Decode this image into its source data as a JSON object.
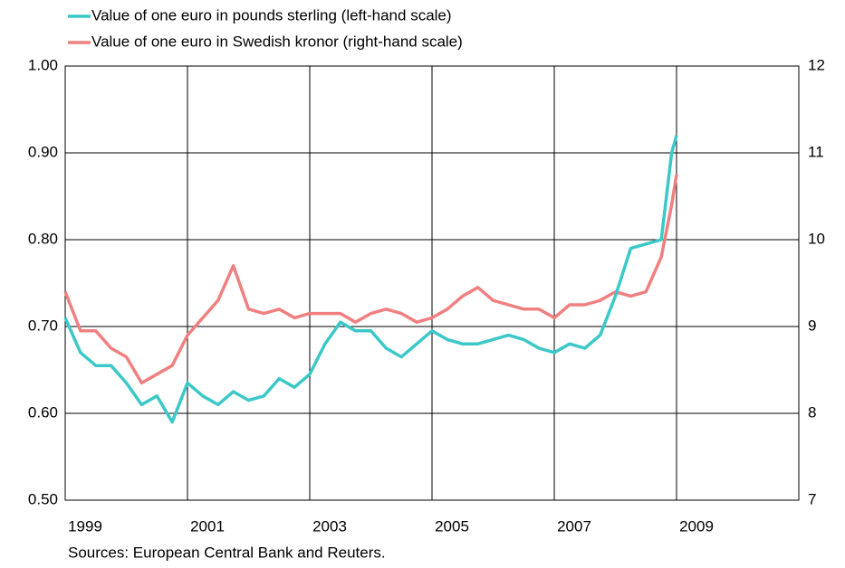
{
  "chart_data": {
    "type": "line",
    "legend": "top-left",
    "note": "Sources: European Central Bank and Reuters.",
    "grid": true,
    "x": [
      1999.0,
      1999.25,
      1999.5,
      1999.75,
      2000.0,
      2000.25,
      2000.5,
      2000.75,
      2001.0,
      2001.25,
      2001.5,
      2001.75,
      2002.0,
      2002.25,
      2002.5,
      2002.75,
      2003.0,
      2003.25,
      2003.5,
      2003.75,
      2004.0,
      2004.25,
      2004.5,
      2004.75,
      2005.0,
      2005.25,
      2005.5,
      2005.75,
      2006.0,
      2006.25,
      2006.5,
      2006.75,
      2007.0,
      2007.25,
      2007.5,
      2007.75,
      2008.0,
      2008.25,
      2008.5,
      2008.75,
      2008.92,
      2009.0
    ],
    "xlim": [
      1999,
      2011
    ],
    "xticks": [
      1999,
      2001,
      2003,
      2005,
      2007,
      2009
    ],
    "ylim": [
      0.5,
      1.0
    ],
    "yticks": [
      {
        "value": 0.5,
        "label": "0.50"
      },
      {
        "value": 0.6,
        "label": "0.60"
      },
      {
        "value": 0.7,
        "label": "0.70"
      },
      {
        "value": 0.8,
        "label": "0.80"
      },
      {
        "value": 0.9,
        "label": "0.90"
      },
      {
        "value": 1.0,
        "label": "1.00"
      }
    ],
    "y2lim": [
      7,
      12
    ],
    "y2ticks": [
      7,
      8,
      9,
      10,
      11,
      12
    ],
    "series": [
      {
        "name": "Value of one euro in pounds sterling (left-hand scale)",
        "color": "#3cc8c8",
        "values": [
          0.71,
          0.67,
          0.655,
          0.655,
          0.635,
          0.61,
          0.62,
          0.59,
          0.635,
          0.62,
          0.61,
          0.625,
          0.615,
          0.62,
          0.64,
          0.63,
          0.645,
          0.68,
          0.705,
          0.695,
          0.695,
          0.675,
          0.665,
          0.68,
          0.695,
          0.685,
          0.68,
          0.68,
          0.685,
          0.69,
          0.685,
          0.675,
          0.67,
          0.68,
          0.675,
          0.69,
          0.735,
          0.79,
          0.795,
          0.8,
          0.9,
          0.92
        ]
      },
      {
        "name": "Value of one euro in Swedish kronor (right-hand scale)",
        "color": "#f08080",
        "axis": "y2",
        "values": [
          9.4,
          8.95,
          8.95,
          8.75,
          8.65,
          8.35,
          8.45,
          8.55,
          8.9,
          9.1,
          9.3,
          9.7,
          9.2,
          9.15,
          9.2,
          9.1,
          9.15,
          9.15,
          9.15,
          9.05,
          9.15,
          9.2,
          9.15,
          9.05,
          9.1,
          9.2,
          9.35,
          9.45,
          9.3,
          9.25,
          9.2,
          9.2,
          9.1,
          9.25,
          9.25,
          9.3,
          9.4,
          9.35,
          9.4,
          9.8,
          10.4,
          10.75
        ]
      }
    ]
  }
}
